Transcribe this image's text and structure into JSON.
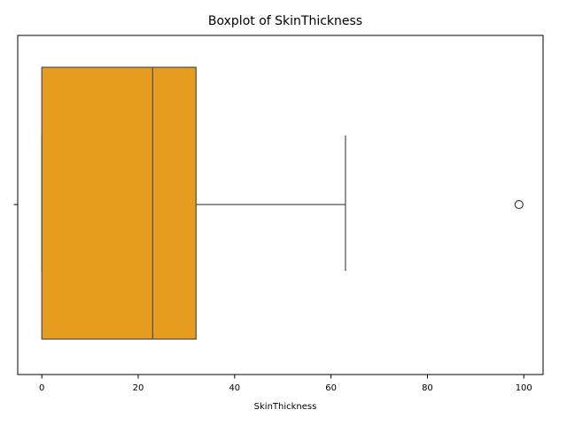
{
  "chart_data": {
    "type": "box",
    "title": "Boxplot of SkinThickness",
    "xlabel": "SkinThickness",
    "ylabel": "",
    "xlim": [
      -5,
      104
    ],
    "x_ticks": [
      0,
      20,
      40,
      60,
      80,
      100
    ],
    "x_tick_labels": [
      "0",
      "20",
      "40",
      "60",
      "80",
      "100"
    ],
    "grid": false,
    "orientation": "horizontal",
    "box": {
      "min": 0,
      "q1": 0,
      "median": 23,
      "q3": 32,
      "max": 63,
      "outliers": [
        99
      ]
    },
    "colors": {
      "box_fill": "#e59c1f",
      "box_edge": "#4d4d4d",
      "outlier_edge": "#3f3f3f"
    }
  }
}
